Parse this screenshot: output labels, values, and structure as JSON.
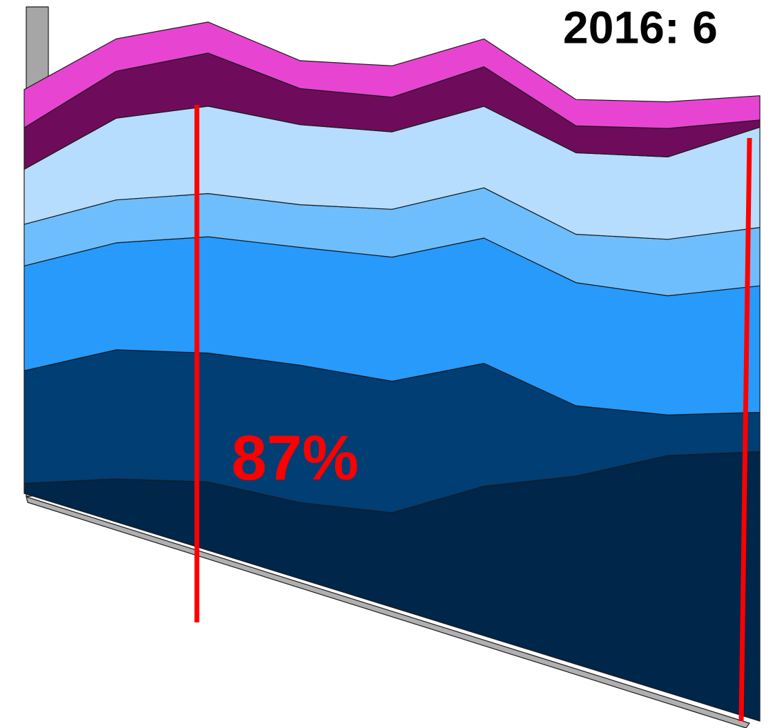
{
  "chart_data": {
    "type": "area",
    "title": "2016: 6",
    "annotations": [
      "87%"
    ],
    "categories": [
      null,
      null,
      null,
      null,
      null,
      null,
      null,
      null,
      null
    ],
    "stacked": true,
    "series": [
      {
        "color": "#00264a",
        "values": [
          2.1,
          8.5,
          13.0,
          13.9,
          16.6,
          25.3,
          30.7,
          37.4,
          41.1
        ]
      },
      {
        "color": "#003e74",
        "values": [
          23.3,
          25.6,
          24.5,
          25.1,
          23.1,
          20.8,
          11.5,
          6.4,
          6.0
        ]
      },
      {
        "color": "#279afc",
        "values": [
          21.7,
          21.2,
          22.1,
          21.5,
          21.8,
          21.2,
          20.1,
          18.8,
          19.3
        ]
      },
      {
        "color": "#6ebefe",
        "values": [
          8.6,
          8.5,
          8.2,
          7.8,
          8.4,
          8.5,
          7.9,
          8.9,
          8.9
        ]
      },
      {
        "color": "#b6ddfe",
        "values": [
          11.4,
          16.2,
          16.6,
          14.6,
          13.6,
          13.8,
          13.3,
          13.0,
          15.3
        ]
      },
      {
        "color": "#6e0c5b",
        "values": [
          8.6,
          9.3,
          10.1,
          6.6,
          6.1,
          6.7,
          4.4,
          4.5,
          1.1
        ]
      },
      {
        "color": "#e844d2",
        "values": [
          7.9,
          6.4,
          5.9,
          5.1,
          5.5,
          4.7,
          4.3,
          4.2,
          3.7
        ]
      }
    ]
  }
}
